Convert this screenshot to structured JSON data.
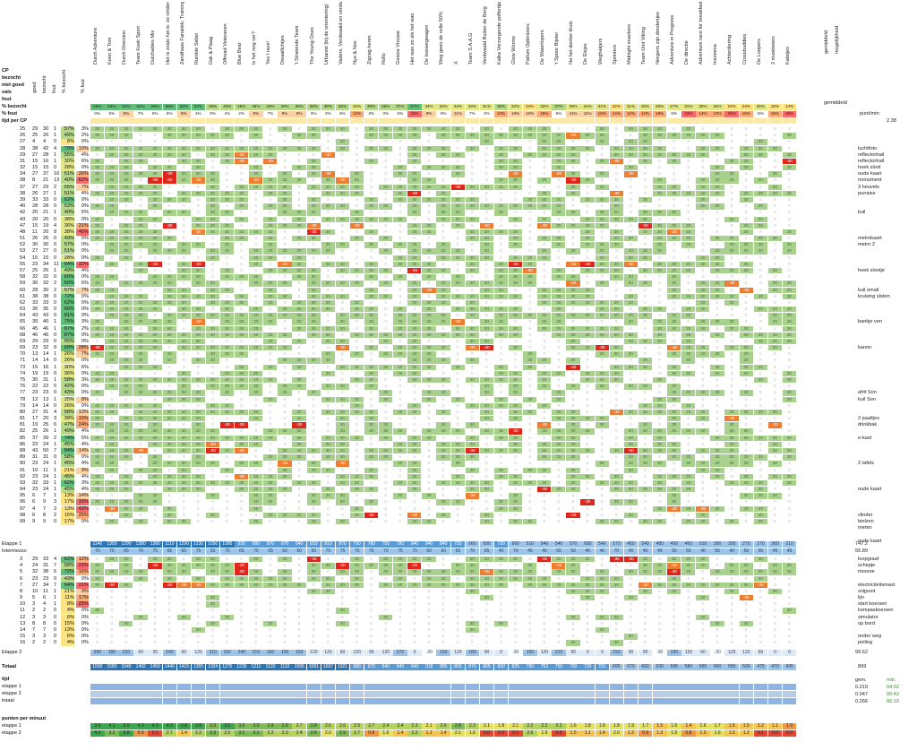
{
  "header": {
    "cp_label": "CP",
    "rows": [
      "bezocht",
      "niet goed",
      "vals",
      "fout"
    ],
    "col_labels": [
      "goed",
      "bezocht",
      "fout",
      "% bezocht",
      "% fout"
    ],
    "pct_bezocht": "% bezocht",
    "pct_fout": "% fout",
    "tijd_per_cp": "tijd per CP",
    "gemiddeld": "gemiddeld",
    "mogelijkheid": "mogelijkheid"
  },
  "teams": [
    "Dutch Adventure",
    "Koen & Tom",
    "Dutch Direction",
    "Team Koek Sport",
    "Dutchables Mix",
    "Het is zoals het is: zo vinden we het goed",
    "Zandhaas Fanatiek; Trainingsverbanden zonder echt zwaar",
    "Rumble Safari",
    "Dak & Plaag",
    "Offroad Veteranen",
    "Blue Bear",
    "Is het nog ver?",
    "Yes I rave!",
    "Dwaallichtjes",
    "'t Stratende Team",
    "The Young Ones",
    "Urbanist (bij de orientering)",
    "Vaders, Verdwaald en verdwaald",
    "Nye & Nox",
    "Zigzag heren",
    "Rollo",
    "Gewoe Vrouwe",
    "Het was zo als het was",
    "De boswegwagen",
    "Weg geen de volle 50%",
    "X",
    "Team S.A.A.G",
    "Verdwaald Buiten de Berg",
    "Kalka Verzorgende pofferttjes",
    "Glow Worms",
    "Patlum Optimizers",
    "De Waterlopers",
    "'t Spoor Bijster",
    "Na het donker thuis",
    "De Elsjes",
    "Weghakjers",
    "Sprinters",
    "Midnight snackers",
    "Team Unit Viking",
    "Nergens zijn dondertjes",
    "Adventure in Progress",
    "De directie",
    "Adventure race for breakfast",
    "Insomnia",
    "Achterdiering",
    "Crossbuddies",
    "De Loopers",
    "2 muskieters",
    "Kalotjes"
  ],
  "pct_bezocht_row": [
    "56%",
    "63%",
    "63%",
    "62%",
    "58%",
    "55%",
    "53%",
    "53%",
    "49%",
    "45%",
    "45%",
    "45%",
    "43%",
    "40%",
    "36%",
    "36%",
    "38%",
    "36%",
    "34%",
    "36%",
    "35%",
    "37%",
    "57%",
    "34%",
    "32%",
    "34%",
    "33%",
    "31%",
    "35%",
    "32%",
    "24%",
    "33%",
    "37%",
    "29%",
    "31%",
    "31%",
    "22%",
    "31%",
    "30%",
    "28%",
    "27%",
    "31%",
    "30%",
    "34%",
    "24%",
    "24%",
    "25%",
    "18%",
    "14%",
    "58%"
  ],
  "pct_fout_row": [
    "0%",
    "5%",
    "8%",
    "7%",
    "6%",
    "6%",
    "8%",
    "4%",
    "0%",
    "4%",
    "2%",
    "8%",
    "7%",
    "9%",
    "8%",
    "3%",
    "3%",
    "6%",
    "12%",
    "3%",
    "3%",
    "6%",
    "23%",
    "9%",
    "6%",
    "11%",
    "7%",
    "4%",
    "13%",
    "10%",
    "10%",
    "18%",
    "6%",
    "11%",
    "11%",
    "16%",
    "14%",
    "12%",
    "12%",
    "18%",
    "5%",
    "23%",
    "14%",
    "13%",
    "26%",
    "15%",
    "6%",
    "16%",
    "26%",
    "13%",
    "23%",
    "10%"
  ],
  "side_labels": [
    {
      "row": 3,
      "text": "luchtfoto"
    },
    {
      "row": 4,
      "text": "reflectortrail"
    },
    {
      "row": 5,
      "text": "reflectortrail"
    },
    {
      "row": 6,
      "text": "hoek sloot"
    },
    {
      "row": 7,
      "text": "oude kaart"
    },
    {
      "row": 8,
      "text": "monument"
    },
    {
      "row": 9,
      "text": "3 heuvels"
    },
    {
      "row": 10,
      "text": "punaise"
    },
    {
      "row": 13,
      "text": "kuil"
    },
    {
      "row": 17,
      "text": "metrokaart"
    },
    {
      "row": 18,
      "text": "metro 2"
    },
    {
      "row": 22,
      "text": "hoek slootje"
    },
    {
      "row": 25,
      "text": "kuil email"
    },
    {
      "row": 26,
      "text": "kruising sloten"
    },
    {
      "row": 30,
      "text": "bankje ven"
    },
    {
      "row": 34,
      "text": "kanon"
    },
    {
      "row": 41,
      "text": "afrit Son"
    },
    {
      "row": 42,
      "text": "kuil Son"
    },
    {
      "row": 45,
      "text": "2 paaltjes"
    },
    {
      "row": 46,
      "text": "drinkbak"
    },
    {
      "row": 48,
      "text": "e-kast"
    },
    {
      "row": 52,
      "text": "2 tafels"
    },
    {
      "row": 56,
      "text": "oude kaart"
    },
    {
      "row": 60,
      "text": "vlinder"
    },
    {
      "row": 61,
      "text": "bielzen"
    },
    {
      "row": 62,
      "text": "memo"
    },
    {
      "row": 64,
      "text": "oude kaart"
    }
  ],
  "rows_left": [
    [
      "25",
      "29",
      "30",
      "1",
      "57%",
      "3%"
    ],
    [
      "26",
      "25",
      "26",
      "1",
      "49%",
      "2%"
    ],
    [
      "27",
      "4",
      "4",
      "0",
      "8%",
      "0%"
    ],
    [
      "28",
      "38",
      "42",
      "4",
      "79%",
      "10%"
    ],
    [
      "29",
      "27",
      "28",
      "1",
      "55%",
      "4%"
    ],
    [
      "31",
      "15",
      "16",
      "1",
      "30%",
      "6%"
    ],
    [
      "32",
      "15",
      "15",
      "0",
      "28%",
      "0%"
    ],
    [
      "34",
      "27",
      "37",
      "10",
      "51%",
      "26%"
    ],
    [
      "38",
      "8",
      "21",
      "13",
      "40%",
      "62%"
    ],
    [
      "37",
      "27",
      "29",
      "2",
      "55%",
      "7%"
    ],
    [
      "38",
      "26",
      "27",
      "1",
      "51%",
      "4%"
    ],
    [
      "39",
      "33",
      "33",
      "0",
      "62%",
      "0%"
    ],
    [
      "40",
      "28",
      "28",
      "0",
      "53%",
      "0%"
    ],
    [
      "42",
      "20",
      "21",
      "1",
      "40%",
      "5%"
    ],
    [
      "43",
      "20",
      "20",
      "0",
      "38%",
      "0%"
    ],
    [
      "47",
      "15",
      "19",
      "4",
      "36%",
      "21%"
    ],
    [
      "48",
      "11",
      "20",
      "9",
      "38%",
      "45%"
    ],
    [
      "51",
      "26",
      "26",
      "0",
      "49%",
      "0%"
    ],
    [
      "52",
      "30",
      "30",
      "0",
      "57%",
      "0%"
    ],
    [
      "53",
      "27",
      "27",
      "0",
      "51%",
      "0%"
    ],
    [
      "54",
      "15",
      "15",
      "0",
      "28%",
      "0%"
    ],
    [
      "55",
      "23",
      "34",
      "11",
      "64%",
      "32%"
    ],
    [
      "57",
      "25",
      "26",
      "1",
      "49%",
      "4%"
    ],
    [
      "58",
      "32",
      "32",
      "0",
      "60%",
      "0%"
    ],
    [
      "59",
      "30",
      "32",
      "2",
      "60%",
      "6%"
    ],
    [
      "60",
      "28",
      "30",
      "2",
      "57%",
      "7%"
    ],
    [
      "61",
      "38",
      "38",
      "0",
      "72%",
      "0%"
    ],
    [
      "62",
      "33",
      "33",
      "0",
      "62%",
      "0%"
    ],
    [
      "63",
      "35",
      "35",
      "0",
      "66%",
      "0%"
    ],
    [
      "64",
      "43",
      "43",
      "0",
      "81%",
      "0%"
    ],
    [
      "65",
      "39",
      "40",
      "1",
      "75%",
      "3%"
    ],
    [
      "66",
      "45",
      "46",
      "1",
      "87%",
      "2%"
    ],
    [
      "68",
      "46",
      "46",
      "0",
      "87%",
      "0%"
    ],
    [
      "69",
      "29",
      "29",
      "0",
      "55%",
      "0%"
    ],
    [
      "69",
      "23",
      "32",
      "9",
      "60%",
      "28%"
    ],
    [
      "70",
      "13",
      "14",
      "1",
      "26%",
      "7%"
    ],
    [
      "71",
      "14",
      "14",
      "0",
      "26%",
      "0%"
    ],
    [
      "73",
      "15",
      "16",
      "1",
      "30%",
      "6%"
    ],
    [
      "74",
      "19",
      "19",
      "0",
      "36%",
      "0%"
    ],
    [
      "75",
      "30",
      "31",
      "1",
      "58%",
      "3%"
    ],
    [
      "76",
      "22",
      "22",
      "0",
      "42%",
      "0%"
    ],
    [
      "77",
      "23",
      "23",
      "0",
      "43%",
      "0%"
    ],
    [
      "78",
      "12",
      "13",
      "1",
      "25%",
      "8%"
    ],
    [
      "79",
      "14",
      "14",
      "0",
      "26%",
      "0%"
    ],
    [
      "80",
      "27",
      "31",
      "4",
      "58%",
      "13%"
    ],
    [
      "81",
      "17",
      "20",
      "3",
      "38%",
      "15%"
    ],
    [
      "81",
      "19",
      "25",
      "6",
      "47%",
      "24%"
    ],
    [
      "82",
      "25",
      "26",
      "1",
      "49%",
      "4%"
    ],
    [
      "85",
      "37",
      "39",
      "2",
      "74%",
      "5%"
    ],
    [
      "86",
      "23",
      "24",
      "1",
      "45%",
      "4%"
    ],
    [
      "88",
      "43",
      "50",
      "7",
      "94%",
      "14%"
    ],
    [
      "89",
      "31",
      "31",
      "0",
      "58%",
      "0%"
    ],
    [
      "90",
      "23",
      "24",
      "1",
      "45%",
      "4%"
    ],
    [
      "91",
      "10",
      "11",
      "1",
      "21%",
      "9%"
    ],
    [
      "92",
      "23",
      "24",
      "1",
      "45%",
      "4%"
    ],
    [
      "93",
      "32",
      "33",
      "1",
      "62%",
      "3%"
    ],
    [
      "94",
      "23",
      "24",
      "1",
      "45%",
      "4%"
    ],
    [
      "95",
      "6",
      "7",
      "1",
      "13%",
      "14%"
    ],
    [
      "96",
      "6",
      "9",
      "3",
      "17%",
      "33%"
    ],
    [
      "97",
      "4",
      "7",
      "3",
      "13%",
      "43%"
    ],
    [
      "98",
      "6",
      "8",
      "2",
      "15%",
      "25%"
    ],
    [
      "99",
      "9",
      "9",
      "0",
      "17%",
      "0%"
    ]
  ],
  "etappe1": {
    "label": "Etappe 1",
    "values": [
      "1140",
      "1350",
      "1290",
      "1380",
      "1380",
      "1110",
      "1290",
      "1230",
      "1050",
      "1080",
      "930",
      "890",
      "870",
      "870",
      "840",
      "810",
      "810",
      "870",
      "750",
      "780",
      "750",
      "780",
      "840",
      "840",
      "840",
      "750",
      "660",
      "690",
      "720",
      "660",
      "510",
      "540",
      "540",
      "570",
      "690",
      "540",
      "570",
      "450",
      "540",
      "480",
      "450",
      "450",
      "510",
      "390",
      "300",
      "270",
      "270",
      "360",
      "210"
    ],
    "avg": "747.2"
  },
  "intermezzo": {
    "label": "Intermezzo",
    "values": [
      "70",
      "70",
      "65",
      "70",
      "75",
      "65",
      "60",
      "75",
      "50",
      "70",
      "65",
      "70",
      "65",
      "60",
      "60",
      "60",
      "75",
      "75",
      "70",
      "75",
      "70",
      "75",
      "70",
      "60",
      "60",
      "60",
      "70",
      "55",
      "40",
      "70",
      "45",
      "40",
      "60",
      "50",
      "45",
      "40",
      "70",
      "45",
      "40",
      "45",
      "50",
      "55",
      "40",
      "55",
      "40",
      "50",
      "55",
      "45",
      "45"
    ],
    "avg": "56.89"
  },
  "rows_bottom": [
    [
      "3",
      "29",
      "33",
      "4",
      "62%",
      "12%"
    ],
    [
      "4",
      "24",
      "31",
      "7",
      "58%",
      "23%"
    ],
    [
      "5",
      "32",
      "38",
      "6",
      "72%",
      "16%"
    ],
    [
      "6",
      "23",
      "23",
      "0",
      "43%",
      "0%"
    ],
    [
      "7",
      "27",
      "34",
      "7",
      "64%",
      "21%"
    ],
    [
      "8",
      "10",
      "11",
      "1",
      "21%",
      "9%"
    ],
    [
      "9",
      "5",
      "6",
      "1",
      "11%",
      "17%"
    ],
    [
      "10",
      "3",
      "4",
      "1",
      "8%",
      "25%"
    ],
    [
      "11",
      "2",
      "2",
      "0",
      "4%",
      "0%"
    ],
    [
      "12",
      "3",
      "3",
      "0",
      "6%",
      "0%"
    ],
    [
      "13",
      "8",
      "8",
      "0",
      "15%",
      "0%"
    ],
    [
      "14",
      "7",
      "7",
      "0",
      "13%",
      "0%"
    ],
    [
      "15",
      "3",
      "3",
      "0",
      "6%",
      "0%"
    ],
    [
      "16",
      "2",
      "2",
      "0",
      "4%",
      "0%"
    ]
  ],
  "bottom_side_labels": [
    {
      "row": 0,
      "text": "loopgraaf"
    },
    {
      "row": 1,
      "text": "schepje"
    },
    {
      "row": 2,
      "text": "moorse"
    },
    {
      "row": 4,
      "text": "electriciteitsmast"
    },
    {
      "row": 5,
      "text": "snijpunt"
    },
    {
      "row": 6,
      "text": "lijn"
    },
    {
      "row": 7,
      "text": "start koersen"
    },
    {
      "row": 8,
      "text": "kompaskoersen"
    },
    {
      "row": 9,
      "text": "simulator"
    },
    {
      "row": 10,
      "text": "op bord"
    },
    {
      "row": 12,
      "text": "onder weg"
    },
    {
      "row": 13,
      "text": "peiling"
    }
  ],
  "etappe2": {
    "label": "Etappe 2",
    "values": [
      "390",
      "180",
      "210",
      "60",
      "30",
      "240",
      "60",
      "120",
      "210",
      "150",
      "240",
      "210",
      "150",
      "150",
      "150",
      "120",
      "120",
      "60",
      "120",
      "90",
      "120",
      "270",
      "0",
      "-30",
      "150",
      "120",
      "180",
      "90",
      "0",
      "-30",
      "150",
      "120",
      "210",
      "90",
      "0",
      "0",
      "150",
      "90",
      "90",
      "-30",
      "150",
      "120",
      "60",
      "-30",
      "120",
      "120",
      "60",
      "0",
      "0"
    ],
    "avg": "99.62"
  },
  "totaal": {
    "label": "Totaal",
    "values": [
      "1590",
      "1585",
      "1545",
      "1492",
      "1459",
      "1440",
      "1415",
      "1355",
      "1324",
      "1275",
      "1235",
      "1211",
      "1120",
      "1110",
      "1095",
      "1081",
      "1037",
      "1021",
      "980",
      "970",
      "940",
      "940",
      "940",
      "918",
      "885",
      "855",
      "870",
      "865",
      "830",
      "825",
      "790",
      "752",
      "750",
      "720",
      "720",
      "701",
      "695",
      "670",
      "660",
      "630",
      "595",
      "580",
      "565",
      "560",
      "550",
      "500",
      "475",
      "470",
      "435"
    ],
    "extra": [
      "332",
      "285",
      "265"
    ],
    "avg": "899"
  },
  "tijd": {
    "label": "tijd",
    "etappe1": "etappe 1",
    "etappe2": "etappe 2",
    "totaal": "totaal",
    "gem_label": "gem.",
    "min_label": "min.",
    "gem": [
      "0.219",
      "0.047",
      "0.266"
    ],
    "min": [
      "04:32",
      "00:42",
      "06:10"
    ]
  },
  "punten": {
    "label": "punten per minuut",
    "etappe1": "etappe 1",
    "etappe2": "etappe 2",
    "row1": [
      "3.9",
      "4.1",
      "3.9",
      "4.3",
      "4.3",
      "4.3",
      "3.8",
      "3.8",
      "3.3",
      "3.5",
      "3.0",
      "3.0",
      "2.9",
      "2.8",
      "2.7",
      "2.8",
      "2.6",
      "2.6",
      "2.5",
      "2.7",
      "2.4",
      "2.4",
      "2.3",
      "2.1",
      "2.6",
      "2.8",
      "2.3",
      "2.1",
      "1.8",
      "2.1",
      "2.2",
      "2.2",
      "2.2",
      "1.6",
      "1.8",
      "1.8",
      "1.8",
      "1.9",
      "1.7",
      "1.5",
      "1.6",
      "1.4",
      "1.6",
      "1.7",
      "1.5",
      "1.5",
      "1.2",
      "1.1",
      "1.0",
      "0.8",
      "1.2",
      "0.7"
    ],
    "row2": [
      "4.3",
      "3.2",
      "3.8",
      "0.9",
      "0.3",
      "2.7",
      "1.4",
      "2.2",
      "3.3",
      "2.5",
      "3.1",
      "3.1",
      "2.2",
      "2.3",
      "2.4",
      "2.8",
      "2.0",
      "2.9",
      "2.7",
      "0.9",
      "1.6",
      "1.4",
      "2.2",
      "1.1",
      "1.4",
      "2.1",
      "1.6",
      "0.0",
      "0.2",
      "0.1",
      "2.6",
      "1.9",
      "0.5",
      "1.5",
      "1.1",
      "1.4",
      "2.0",
      "1.2",
      "0.9",
      "1.3",
      "1.6",
      "0.8",
      "1.3",
      "1.6",
      "1.5",
      "1.2",
      "0.1",
      "0.0",
      "0.0",
      "0.0"
    ]
  },
  "punt_min": {
    "label": "punt/min:",
    "value": "2.38"
  },
  "colors": {
    "green": "#a9d18e",
    "lightgreen": "#c6e0b4",
    "orange": "#f4b183",
    "darkorange": "#ed7d31",
    "red": "#e0261b",
    "blue": "#5b9bd5",
    "lightblue": "#9dc3e6",
    "yellow": "#ffe699",
    "pink": "#f8cbad"
  }
}
